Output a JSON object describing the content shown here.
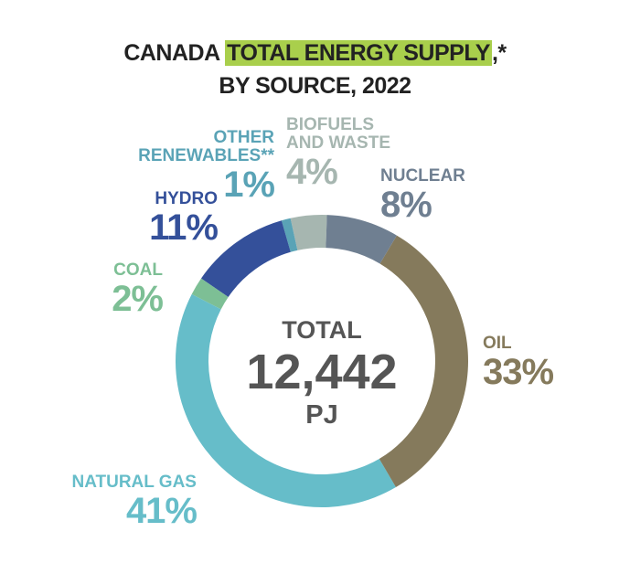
{
  "chart_data": {
    "type": "pie",
    "title": [
      "CANADA",
      "TOTAL ENERGY SUPPLY",
      ",*"
    ],
    "subtitle": "BY SOURCE, 2022",
    "categories": [
      "NUCLEAR",
      "OIL",
      "NATURAL GAS",
      "COAL",
      "HYDRO",
      "OTHER RENEWABLES**",
      "BIOFUELS AND WASTE"
    ],
    "values": [
      8,
      33,
      41,
      2,
      11,
      1,
      4
    ],
    "value_labels": [
      "8%",
      "33%",
      "41%",
      "2%",
      "11%",
      "1%",
      "4%"
    ],
    "colors": [
      "#6f7f91",
      "#857a5c",
      "#66bdc9",
      "#7dbf95",
      "#34509a",
      "#5aa3b6",
      "#a6b6b0"
    ],
    "center_label": [
      "TOTAL",
      "12,442",
      "PJ"
    ]
  }
}
